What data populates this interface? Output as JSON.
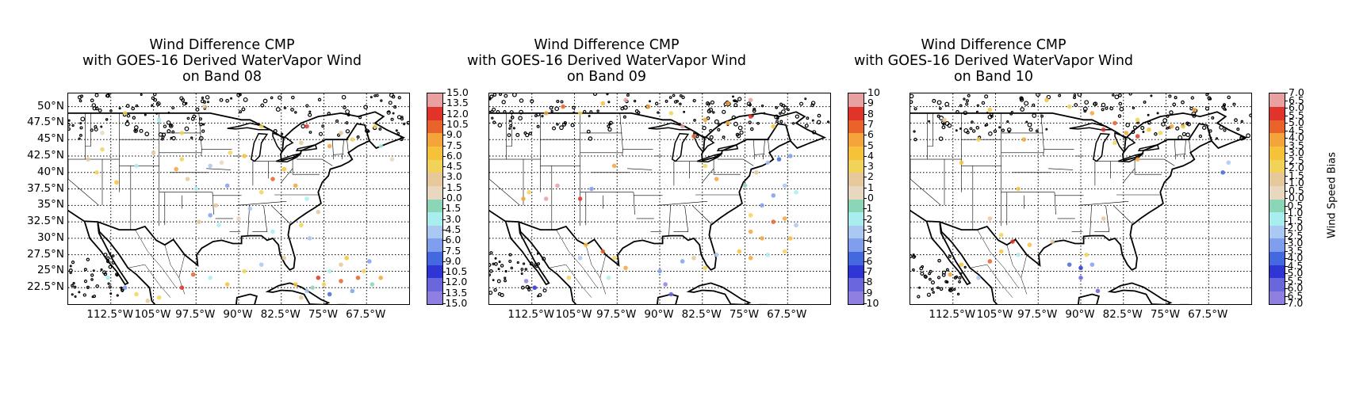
{
  "figure": {
    "colorbar_label": "Wind Speed Bias",
    "lat_ticks": [
      "50°N",
      "47.5°N",
      "45°N",
      "42.5°N",
      "40°N",
      "37.5°N",
      "35°N",
      "32.5°N",
      "30°N",
      "27.5°N",
      "25°N",
      "22.5°N"
    ],
    "lon_ticks": [
      "112.5°W",
      "105°W",
      "97.5°W",
      "90°W",
      "82.5°W",
      "75°W",
      "67.5°W"
    ]
  },
  "panels": [
    {
      "title_lines": [
        "Wind Difference CMP",
        "with GOES-16 Derived WaterVapor Wind",
        "on Band 08"
      ],
      "colorbar_ticks": [
        "15.0",
        "13.5",
        "12.0",
        "10.5",
        "9.0",
        "7.5",
        "6.0",
        "4.5",
        "3.0",
        "1.5",
        "0.0",
        "-1.5",
        "-3.0",
        "-4.5",
        "-6.0",
        "-7.5",
        "-9.0",
        "-10.5",
        "-12.0",
        "-13.5",
        "-15.0"
      ],
      "colorbar_range": [
        -15,
        15
      ]
    },
    {
      "title_lines": [
        "Wind Difference CMP",
        "with GOES-16 Derived WaterVapor Wind",
        "on Band 09"
      ],
      "colorbar_ticks": [
        "10",
        "9",
        "8",
        "7",
        "6",
        "5",
        "4",
        "3",
        "2",
        "1",
        "0",
        "-1",
        "-2",
        "-3",
        "-4",
        "-5",
        "-6",
        "-7",
        "-8",
        "-9",
        "-10"
      ],
      "colorbar_range": [
        -10,
        10
      ]
    },
    {
      "title_lines": [
        "Wind Difference CMP",
        "with GOES-16 Derived WaterVapor Wind",
        "on Band 10"
      ],
      "colorbar_ticks": [
        "7.0",
        "6.5",
        "6.0",
        "5.5",
        "5.0",
        "4.5",
        "4.0",
        "3.5",
        "3.0",
        "2.5",
        "2.0",
        "1.5",
        "1.0",
        "0.5",
        "0.0",
        "-0.5",
        "-1.0",
        "-1.5",
        "-2.0",
        "-2.5",
        "-3.0",
        "-3.5",
        "-4.0",
        "-4.5",
        "-5.0",
        "-5.5",
        "-6.0",
        "-6.5",
        "-7.0"
      ],
      "colorbar_range": [
        -7,
        7
      ]
    }
  ],
  "colors": {
    "cmap": [
      "#8f7fe0",
      "#6a66dc",
      "#2f35d4",
      "#4468e0",
      "#7f9fee",
      "#a9c8f2",
      "#a8eeee",
      "#8cd6b8",
      "#e8d8c0",
      "#e6c89a",
      "#f2d35a",
      "#f6c23a",
      "#f4a43a",
      "#e8622a",
      "#e0342a",
      "#e8a0a0"
    ]
  },
  "map_extent": {
    "lon": [
      -120,
      -60
    ],
    "lat": [
      20,
      52
    ]
  },
  "observations": [
    [
      [
        -114,
        43.5,
        4
      ],
      [
        -116.5,
        42,
        3
      ],
      [
        -115,
        40,
        5
      ],
      [
        -111.5,
        38.5,
        6
      ],
      [
        -108,
        41,
        -2
      ],
      [
        -105,
        43,
        2
      ],
      [
        -100,
        46,
        4
      ],
      [
        -100,
        42,
        5
      ],
      [
        -101,
        40.5,
        9
      ],
      [
        -99,
        39,
        3
      ],
      [
        -97.5,
        37.5,
        -3
      ],
      [
        -95,
        41,
        -5
      ],
      [
        -93,
        41.5,
        1
      ],
      [
        -91.5,
        43,
        4
      ],
      [
        -89,
        42.5,
        7
      ],
      [
        -92,
        38,
        -6
      ],
      [
        -94,
        35,
        3
      ],
      [
        -95,
        33.5,
        -7
      ],
      [
        -97,
        32.5,
        2
      ],
      [
        -93.5,
        32,
        -3
      ],
      [
        -90,
        33,
        1
      ],
      [
        -88,
        34.5,
        -4
      ],
      [
        -86,
        37,
        4
      ],
      [
        -84,
        39,
        10
      ],
      [
        -82,
        40.5,
        6
      ],
      [
        -80,
        38,
        8
      ],
      [
        -78,
        36,
        -2
      ],
      [
        -76,
        34,
        3
      ],
      [
        -79,
        32,
        5
      ],
      [
        -77.5,
        30,
        -5
      ],
      [
        -84,
        31,
        -3
      ],
      [
        -82,
        27,
        2
      ],
      [
        -86,
        26,
        -4
      ],
      [
        -89,
        25,
        4
      ],
      [
        -92,
        23,
        6
      ],
      [
        -95,
        24,
        -2
      ],
      [
        -98,
        24.5,
        10
      ],
      [
        -100,
        22.5,
        12
      ],
      [
        -104,
        21,
        4
      ],
      [
        -106,
        20.5,
        3
      ],
      [
        -108,
        21.5,
        5
      ],
      [
        -113,
        24,
        -3
      ],
      [
        -110,
        22.5,
        -6
      ],
      [
        -80,
        23,
        7
      ],
      [
        -78,
        22,
        -4
      ],
      [
        -76,
        24,
        12
      ],
      [
        -74,
        25,
        -3
      ],
      [
        -72,
        23.5,
        10
      ],
      [
        -70,
        22,
        -6
      ],
      [
        -68,
        25,
        4
      ],
      [
        -66.5,
        23,
        -1
      ],
      [
        -72,
        26,
        3
      ],
      [
        -74,
        21.5,
        -8
      ],
      [
        -69,
        24,
        11
      ],
      [
        -67,
        26.5,
        -7
      ],
      [
        -75,
        23,
        5
      ],
      [
        -77,
        22.5,
        -1
      ],
      [
        -79,
        21,
        2
      ],
      [
        -65,
        24,
        8
      ],
      [
        -71,
        27,
        6
      ],
      [
        -70,
        45,
        5
      ],
      [
        -72,
        46,
        3
      ],
      [
        -65,
        44,
        -2
      ],
      [
        -63,
        42,
        1
      ],
      [
        -66,
        47,
        4
      ],
      [
        -74,
        44,
        9
      ],
      [
        -79,
        44.5,
        3
      ],
      [
        -86,
        47,
        4
      ],
      [
        -96,
        50,
        3
      ],
      [
        -104,
        48,
        -3
      ],
      [
        -114,
        46,
        1
      ],
      [
        -110,
        49,
        5
      ],
      [
        -78,
        47,
        12
      ]
    ],
    [
      [
        -113.5,
        23.5,
        -9
      ],
      [
        -112,
        22.5,
        -7
      ],
      [
        -114,
        36,
        5
      ],
      [
        -113,
        37,
        3
      ],
      [
        -110,
        36,
        12
      ],
      [
        -108,
        38,
        9
      ],
      [
        -104,
        36,
        8
      ],
      [
        -102,
        37.5,
        -4
      ],
      [
        -98,
        41,
        6
      ],
      [
        -100,
        28,
        7
      ],
      [
        -103,
        29,
        4
      ],
      [
        -104,
        27,
        -3
      ],
      [
        -98,
        27,
        3
      ],
      [
        -96,
        25.5,
        5
      ],
      [
        -99,
        24,
        -2
      ],
      [
        -106,
        24,
        3
      ],
      [
        -90,
        25,
        -5
      ],
      [
        -89,
        23,
        -9
      ],
      [
        -88,
        21.5,
        -8
      ],
      [
        -86,
        26.5,
        -4
      ],
      [
        -84,
        27,
        2
      ],
      [
        -82,
        25.5,
        3
      ],
      [
        -80,
        27.5,
        -3
      ],
      [
        -76,
        28,
        4
      ],
      [
        -74,
        27,
        5
      ],
      [
        -71,
        27.5,
        -2
      ],
      [
        -68,
        28,
        3
      ],
      [
        -67,
        30,
        4
      ],
      [
        -72,
        30,
        6
      ],
      [
        -74,
        31,
        5
      ],
      [
        -70,
        32.5,
        7
      ],
      [
        -68,
        33,
        6
      ],
      [
        -66,
        32,
        -3
      ],
      [
        -74,
        33.5,
        3
      ],
      [
        -72,
        35,
        -4
      ],
      [
        -70,
        36.5,
        -5
      ],
      [
        -68,
        38,
        -3
      ],
      [
        -66,
        37,
        -2
      ],
      [
        -75,
        38,
        -1
      ],
      [
        -73,
        40,
        2
      ],
      [
        -71,
        41.5,
        -3
      ],
      [
        -69,
        42,
        -6
      ],
      [
        -67,
        42.5,
        -4
      ],
      [
        -80,
        39,
        6
      ],
      [
        -82,
        41,
        3
      ],
      [
        -84,
        45.5,
        7
      ],
      [
        -86,
        47,
        9
      ],
      [
        -82,
        48,
        5
      ],
      [
        -78,
        47.5,
        6
      ],
      [
        -74,
        48.5,
        8
      ],
      [
        -70,
        47,
        4
      ],
      [
        -88,
        49,
        3
      ],
      [
        -92,
        50,
        6
      ],
      [
        -96,
        51,
        9
      ],
      [
        -100,
        50.5,
        4
      ],
      [
        -104,
        49,
        3
      ],
      [
        -107,
        50,
        7
      ],
      [
        -110,
        49,
        5
      ],
      [
        -74,
        51,
        9
      ],
      [
        -78,
        50.5,
        6
      ]
    ],
    [
      [
        -113,
        24.5,
        4
      ],
      [
        -111,
        26,
        3
      ],
      [
        -108,
        24,
        -2
      ],
      [
        -106,
        26.5,
        5
      ],
      [
        -104,
        28,
        3
      ],
      [
        -102,
        29.5,
        6
      ],
      [
        -101,
        27.5,
        -1
      ],
      [
        -99,
        29,
        3
      ],
      [
        -104,
        30.5,
        2
      ],
      [
        -106,
        33,
        1
      ],
      [
        -95,
        29.5,
        1
      ],
      [
        -92,
        26,
        -4
      ],
      [
        -90,
        25.5,
        -5
      ],
      [
        -90,
        24,
        -6
      ],
      [
        -88,
        26,
        -3
      ],
      [
        -87,
        22,
        -6
      ],
      [
        -89,
        27.5,
        2
      ],
      [
        -86,
        33,
        1
      ],
      [
        -101,
        37.5,
        3
      ],
      [
        -108,
        45,
        2
      ],
      [
        -111,
        41.5,
        3
      ],
      [
        -114,
        48,
        1
      ],
      [
        -100,
        45,
        4
      ],
      [
        -84,
        47.5,
        5
      ],
      [
        -82,
        46,
        4
      ],
      [
        -80,
        45.5,
        6
      ],
      [
        -78,
        46.5,
        3
      ],
      [
        -76,
        46,
        2
      ],
      [
        -74,
        47,
        4
      ],
      [
        -72,
        47,
        3
      ],
      [
        -70,
        49.5,
        4
      ],
      [
        -80,
        48,
        2
      ],
      [
        -86,
        46.5,
        6
      ],
      [
        -84,
        44.5,
        2
      ],
      [
        -65,
        40,
        -4
      ],
      [
        -64,
        41.5,
        -2
      ],
      [
        -96,
        51,
        3
      ],
      [
        -92,
        50,
        2
      ],
      [
        -88,
        49,
        4
      ],
      [
        -106,
        49.5,
        3
      ],
      [
        -80,
        42,
        4
      ]
    ]
  ]
}
